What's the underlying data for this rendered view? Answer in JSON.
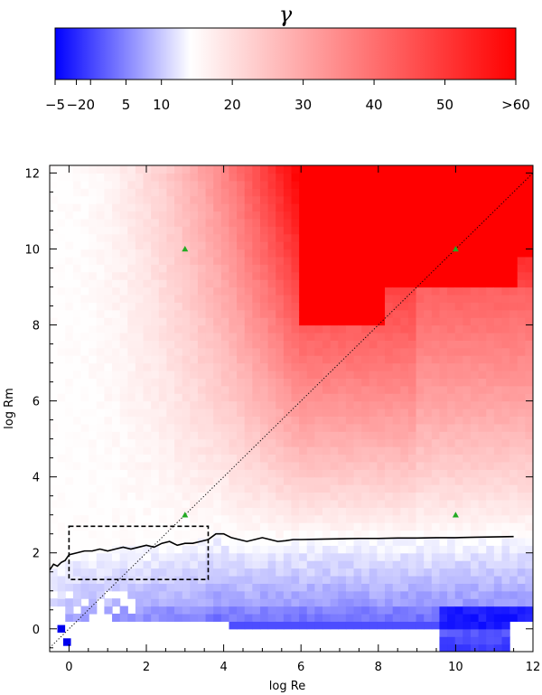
{
  "chart_data": [
    {
      "type": "colorbar",
      "title": "γ",
      "tick_labels": [
        "−5",
        "−2",
        "0",
        "5",
        "10",
        "20",
        "30",
        "40",
        "50",
        ">60"
      ],
      "tick_values": [
        -5,
        -2,
        0,
        5,
        10,
        20,
        30,
        40,
        50,
        60
      ],
      "range": [
        -5,
        60
      ],
      "colors": {
        "negative_end": "#0000ff",
        "zero": "#ffffff",
        "positive_end": "#ff0000"
      }
    },
    {
      "type": "heatmap",
      "xlabel": "log Re",
      "ylabel": "log Rm",
      "xlim": [
        -0.5,
        12
      ],
      "ylim": [
        -0.6,
        12.2
      ],
      "xticks": [
        0,
        2,
        4,
        6,
        8,
        10,
        12
      ],
      "yticks": [
        0,
        2,
        4,
        6,
        8,
        10,
        12
      ],
      "xtick_labels": [
        "0",
        "2",
        "4",
        "6",
        "8",
        "10",
        "12"
      ],
      "ytick_labels": [
        "0",
        "2",
        "4",
        "6",
        "8",
        "10",
        "12"
      ],
      "cells_description": "growth rate γ over (log Re, log Rm); saturated >60 for Re≥6, Rm≥8",
      "critical_curve": {
        "log_Re": [
          -0.5,
          -0.4,
          -0.3,
          -0.2,
          -0.1,
          0.0,
          0.2,
          0.4,
          0.6,
          0.8,
          1.0,
          1.2,
          1.4,
          1.6,
          1.8,
          2.0,
          2.2,
          2.4,
          2.6,
          2.8,
          3.0,
          3.2,
          3.4,
          3.6,
          3.8,
          4.0,
          4.2,
          4.4,
          4.6,
          4.8,
          5.0,
          5.2,
          5.4,
          5.6,
          5.8,
          6.0,
          6.5,
          7.0,
          7.5,
          8.0,
          8.5,
          9.0,
          9.5,
          10.0,
          10.5,
          11.0,
          11.5
        ],
        "log_Rm": [
          1.55,
          1.7,
          1.65,
          1.75,
          1.8,
          1.95,
          2.0,
          2.05,
          2.05,
          2.1,
          2.05,
          2.1,
          2.15,
          2.1,
          2.15,
          2.2,
          2.15,
          2.25,
          2.3,
          2.2,
          2.25,
          2.25,
          2.3,
          2.35,
          2.5,
          2.5,
          2.4,
          2.35,
          2.3,
          2.35,
          2.4,
          2.35,
          2.3,
          2.32,
          2.35,
          2.35,
          2.36,
          2.37,
          2.38,
          2.38,
          2.39,
          2.39,
          2.4,
          2.4,
          2.41,
          2.42,
          2.43
        ]
      },
      "diagonal_line": {
        "from": [
          -0.5,
          -0.5
        ],
        "to": [
          12,
          12
        ],
        "style": "dotted"
      },
      "markers": [
        {
          "x": 3,
          "y": 10,
          "shape": "triangle",
          "color": "#22aa22"
        },
        {
          "x": 10,
          "y": 10,
          "shape": "triangle",
          "color": "#22aa22"
        },
        {
          "x": 3,
          "y": 3,
          "shape": "triangle",
          "color": "#22aa22"
        },
        {
          "x": 10,
          "y": 3,
          "shape": "triangle",
          "color": "#22aa22"
        }
      ],
      "dashed_box": {
        "x_range": [
          0.0,
          3.6
        ],
        "y_range": [
          1.3,
          2.7
        ]
      }
    }
  ]
}
